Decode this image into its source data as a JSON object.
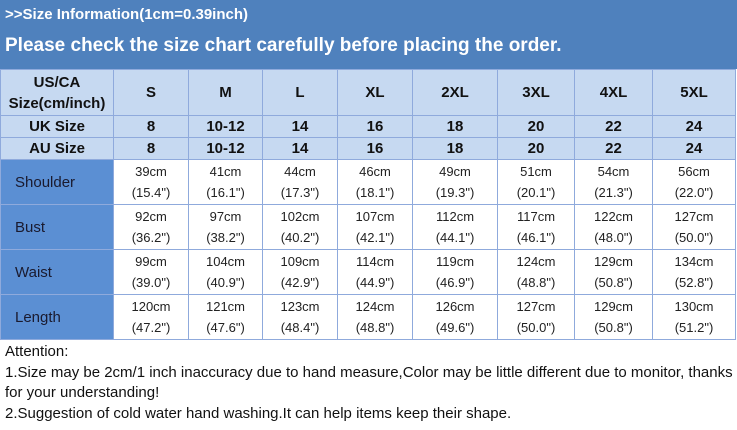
{
  "header": {
    "subtitle": ">>Size Information(1cm=0.39inch)",
    "title": "Please check the size chart carefully before placing the order."
  },
  "table": {
    "corner": [
      "US/CA",
      "Size(cm/inch)"
    ],
    "sizes": [
      "S",
      "M",
      "L",
      "XL",
      "2XL",
      "3XL",
      "4XL",
      "5XL"
    ],
    "alt_rows": [
      {
        "label": "UK Size",
        "values": [
          "8",
          "10-12",
          "14",
          "16",
          "18",
          "20",
          "22",
          "24"
        ]
      },
      {
        "label": "AU Size",
        "values": [
          "8",
          "10-12",
          "14",
          "16",
          "18",
          "20",
          "22",
          "24"
        ]
      }
    ],
    "rows": [
      {
        "label": "Shoulder",
        "cm": [
          "39cm",
          "41cm",
          "44cm",
          "46cm",
          "49cm",
          "51cm",
          "54cm",
          "56cm"
        ],
        "inch": [
          "(15.4\")",
          "(16.1\")",
          "(17.3\")",
          "(18.1\")",
          "(19.3\")",
          "(20.1\")",
          "(21.3\")",
          "(22.0\")"
        ]
      },
      {
        "label": "Bust",
        "cm": [
          "92cm",
          "97cm",
          "102cm",
          "107cm",
          "112cm",
          "117cm",
          "122cm",
          "127cm"
        ],
        "inch": [
          "(36.2\")",
          "(38.2\")",
          "(40.2\")",
          "(42.1\")",
          "(44.1\")",
          "(46.1\")",
          "(48.0\")",
          "(50.0\")"
        ]
      },
      {
        "label": "Waist",
        "cm": [
          "99cm",
          "104cm",
          "109cm",
          "114cm",
          "119cm",
          "124cm",
          "129cm",
          "134cm"
        ],
        "inch": [
          "(39.0\")",
          "(40.9\")",
          "(42.9\")",
          "(44.9\")",
          "(46.9\")",
          "(48.8\")",
          "(50.8\")",
          "(52.8\")"
        ]
      },
      {
        "label": "Length",
        "cm": [
          "120cm",
          "121cm",
          "123cm",
          "124cm",
          "126cm",
          "127cm",
          "129cm",
          "130cm"
        ],
        "inch": [
          "(47.2\")",
          "(47.6\")",
          "(48.4\")",
          "(48.8\")",
          "(49.6\")",
          "(50.0\")",
          "(50.8\")",
          "(51.2\")"
        ]
      }
    ]
  },
  "notes": [
    "Attention:",
    "1.Size may be 2cm/1 inch inaccuracy due to hand measure,Color may be little different due to monitor, thanks for your understanding!",
    "2.Suggestion of cold water hand washing.It can help items keep their shape."
  ]
}
